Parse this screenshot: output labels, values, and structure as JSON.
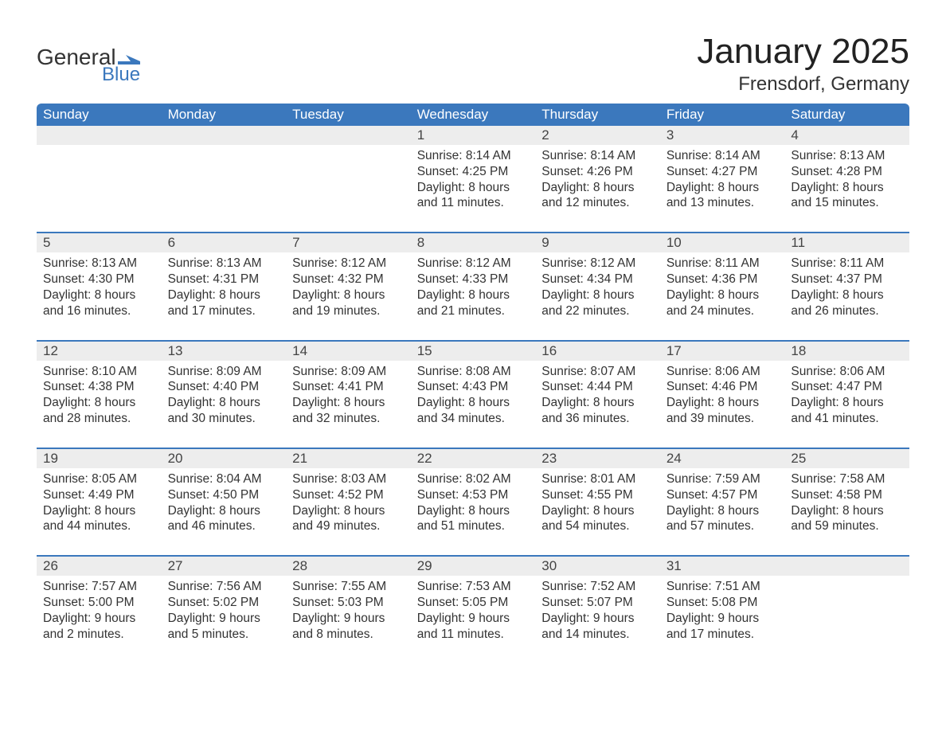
{
  "brand": {
    "word1": "General",
    "word2": "Blue",
    "brand_color": "#3b78bd"
  },
  "title": "January 2025",
  "location": "Frensdorf, Germany",
  "header_bg": "#3b78bd",
  "daynum_bg": "#ededed",
  "row_border_color": "#3b78bd",
  "text_color": "#333333",
  "font_family": "Arial, Helvetica, sans-serif",
  "days_of_week": [
    "Sunday",
    "Monday",
    "Tuesday",
    "Wednesday",
    "Thursday",
    "Friday",
    "Saturday"
  ],
  "weeks": [
    [
      null,
      null,
      null,
      {
        "n": "1",
        "sunrise": "8:14 AM",
        "sunset": "4:25 PM",
        "dl1": "Daylight: 8 hours",
        "dl2": "and 11 minutes."
      },
      {
        "n": "2",
        "sunrise": "8:14 AM",
        "sunset": "4:26 PM",
        "dl1": "Daylight: 8 hours",
        "dl2": "and 12 minutes."
      },
      {
        "n": "3",
        "sunrise": "8:14 AM",
        "sunset": "4:27 PM",
        "dl1": "Daylight: 8 hours",
        "dl2": "and 13 minutes."
      },
      {
        "n": "4",
        "sunrise": "8:13 AM",
        "sunset": "4:28 PM",
        "dl1": "Daylight: 8 hours",
        "dl2": "and 15 minutes."
      }
    ],
    [
      {
        "n": "5",
        "sunrise": "8:13 AM",
        "sunset": "4:30 PM",
        "dl1": "Daylight: 8 hours",
        "dl2": "and 16 minutes."
      },
      {
        "n": "6",
        "sunrise": "8:13 AM",
        "sunset": "4:31 PM",
        "dl1": "Daylight: 8 hours",
        "dl2": "and 17 minutes."
      },
      {
        "n": "7",
        "sunrise": "8:12 AM",
        "sunset": "4:32 PM",
        "dl1": "Daylight: 8 hours",
        "dl2": "and 19 minutes."
      },
      {
        "n": "8",
        "sunrise": "8:12 AM",
        "sunset": "4:33 PM",
        "dl1": "Daylight: 8 hours",
        "dl2": "and 21 minutes."
      },
      {
        "n": "9",
        "sunrise": "8:12 AM",
        "sunset": "4:34 PM",
        "dl1": "Daylight: 8 hours",
        "dl2": "and 22 minutes."
      },
      {
        "n": "10",
        "sunrise": "8:11 AM",
        "sunset": "4:36 PM",
        "dl1": "Daylight: 8 hours",
        "dl2": "and 24 minutes."
      },
      {
        "n": "11",
        "sunrise": "8:11 AM",
        "sunset": "4:37 PM",
        "dl1": "Daylight: 8 hours",
        "dl2": "and 26 minutes."
      }
    ],
    [
      {
        "n": "12",
        "sunrise": "8:10 AM",
        "sunset": "4:38 PM",
        "dl1": "Daylight: 8 hours",
        "dl2": "and 28 minutes."
      },
      {
        "n": "13",
        "sunrise": "8:09 AM",
        "sunset": "4:40 PM",
        "dl1": "Daylight: 8 hours",
        "dl2": "and 30 minutes."
      },
      {
        "n": "14",
        "sunrise": "8:09 AM",
        "sunset": "4:41 PM",
        "dl1": "Daylight: 8 hours",
        "dl2": "and 32 minutes."
      },
      {
        "n": "15",
        "sunrise": "8:08 AM",
        "sunset": "4:43 PM",
        "dl1": "Daylight: 8 hours",
        "dl2": "and 34 minutes."
      },
      {
        "n": "16",
        "sunrise": "8:07 AM",
        "sunset": "4:44 PM",
        "dl1": "Daylight: 8 hours",
        "dl2": "and 36 minutes."
      },
      {
        "n": "17",
        "sunrise": "8:06 AM",
        "sunset": "4:46 PM",
        "dl1": "Daylight: 8 hours",
        "dl2": "and 39 minutes."
      },
      {
        "n": "18",
        "sunrise": "8:06 AM",
        "sunset": "4:47 PM",
        "dl1": "Daylight: 8 hours",
        "dl2": "and 41 minutes."
      }
    ],
    [
      {
        "n": "19",
        "sunrise": "8:05 AM",
        "sunset": "4:49 PM",
        "dl1": "Daylight: 8 hours",
        "dl2": "and 44 minutes."
      },
      {
        "n": "20",
        "sunrise": "8:04 AM",
        "sunset": "4:50 PM",
        "dl1": "Daylight: 8 hours",
        "dl2": "and 46 minutes."
      },
      {
        "n": "21",
        "sunrise": "8:03 AM",
        "sunset": "4:52 PM",
        "dl1": "Daylight: 8 hours",
        "dl2": "and 49 minutes."
      },
      {
        "n": "22",
        "sunrise": "8:02 AM",
        "sunset": "4:53 PM",
        "dl1": "Daylight: 8 hours",
        "dl2": "and 51 minutes."
      },
      {
        "n": "23",
        "sunrise": "8:01 AM",
        "sunset": "4:55 PM",
        "dl1": "Daylight: 8 hours",
        "dl2": "and 54 minutes."
      },
      {
        "n": "24",
        "sunrise": "7:59 AM",
        "sunset": "4:57 PM",
        "dl1": "Daylight: 8 hours",
        "dl2": "and 57 minutes."
      },
      {
        "n": "25",
        "sunrise": "7:58 AM",
        "sunset": "4:58 PM",
        "dl1": "Daylight: 8 hours",
        "dl2": "and 59 minutes."
      }
    ],
    [
      {
        "n": "26",
        "sunrise": "7:57 AM",
        "sunset": "5:00 PM",
        "dl1": "Daylight: 9 hours",
        "dl2": "and 2 minutes."
      },
      {
        "n": "27",
        "sunrise": "7:56 AM",
        "sunset": "5:02 PM",
        "dl1": "Daylight: 9 hours",
        "dl2": "and 5 minutes."
      },
      {
        "n": "28",
        "sunrise": "7:55 AM",
        "sunset": "5:03 PM",
        "dl1": "Daylight: 9 hours",
        "dl2": "and 8 minutes."
      },
      {
        "n": "29",
        "sunrise": "7:53 AM",
        "sunset": "5:05 PM",
        "dl1": "Daylight: 9 hours",
        "dl2": "and 11 minutes."
      },
      {
        "n": "30",
        "sunrise": "7:52 AM",
        "sunset": "5:07 PM",
        "dl1": "Daylight: 9 hours",
        "dl2": "and 14 minutes."
      },
      {
        "n": "31",
        "sunrise": "7:51 AM",
        "sunset": "5:08 PM",
        "dl1": "Daylight: 9 hours",
        "dl2": "and 17 minutes."
      },
      null
    ]
  ],
  "labels": {
    "sunrise_prefix": "Sunrise: ",
    "sunset_prefix": "Sunset: "
  }
}
